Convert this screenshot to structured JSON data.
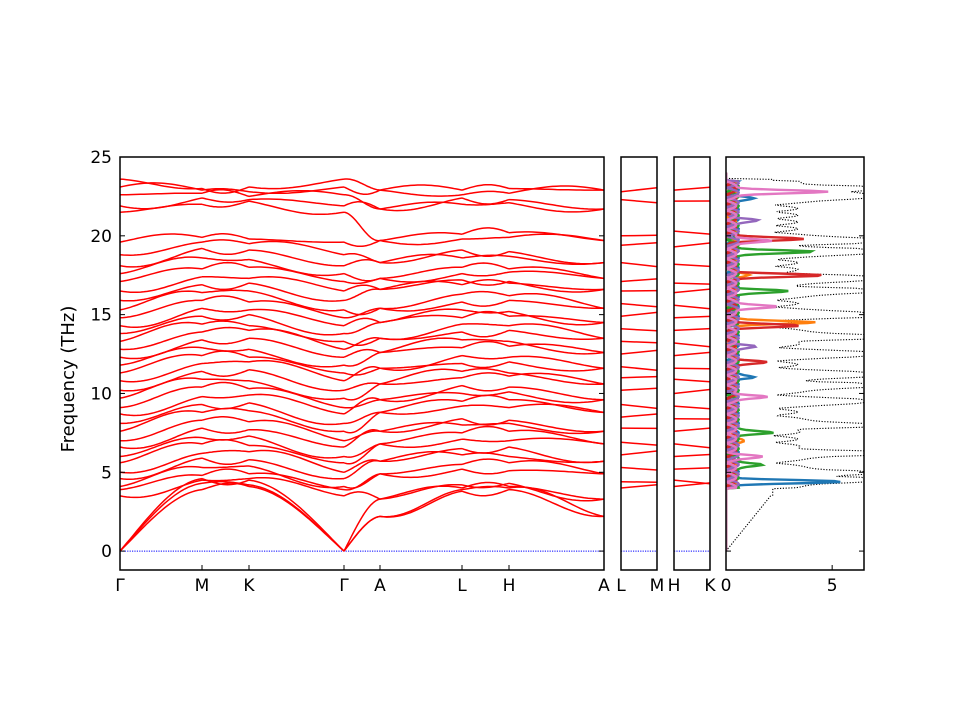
{
  "chart_data": [
    {
      "type": "line",
      "panel": "band-structure-main",
      "ylabel": "Frequency (THz)",
      "ylim": [
        -1.2,
        25
      ],
      "y_ticks": [
        0,
        5,
        10,
        15,
        20,
        25
      ],
      "x_labels": [
        "Γ",
        "M",
        "K",
        "Γ",
        "A",
        "L",
        "H",
        "A"
      ],
      "series_color": "#ff0000",
      "zero_line_color": "#0000ff",
      "segments": [
        {
          "from": "Γ",
          "to": "M",
          "bands_start": [
            0,
            0,
            0,
            3.5,
            3.9,
            4.1,
            4.6,
            5.0,
            5.6,
            6.0,
            6.6,
            7.0,
            7.6,
            8.1,
            8.7,
            9.1,
            9.7,
            10.2,
            10.8,
            11.3,
            11.8,
            12.3,
            12.8,
            13.3,
            13.8,
            14.3,
            14.8,
            15.3,
            15.9,
            16.5,
            17.1,
            17.6,
            18.1,
            18.8,
            19.6,
            21.5,
            21.9,
            22.6,
            23.1,
            23.6
          ],
          "bands_end": [
            3.9,
            4.3,
            4.6,
            4.5,
            4.8,
            5.3,
            5.9,
            6.2,
            6.8,
            7.2,
            7.8,
            8.3,
            8.8,
            9.3,
            9.8,
            10.4,
            10.9,
            11.4,
            11.9,
            12.4,
            12.9,
            13.4,
            13.9,
            14.4,
            14.9,
            15.4,
            15.9,
            16.4,
            16.9,
            17.4,
            17.9,
            18.6,
            19.2,
            19.6,
            19.9,
            22.0,
            22.4,
            22.7,
            22.9,
            23.0
          ]
        },
        {
          "from": "M",
          "to": "K",
          "bands_start": [
            3.9,
            4.3,
            4.6,
            4.5,
            4.8,
            5.3,
            5.9,
            6.2,
            6.8,
            7.2,
            7.8,
            8.3,
            8.8,
            9.3,
            9.8,
            10.4,
            10.9,
            11.4,
            11.9,
            12.4,
            12.9,
            13.4,
            13.9,
            14.4,
            14.9,
            15.4,
            15.9,
            16.4,
            16.9,
            17.4,
            17.9,
            18.6,
            19.2,
            19.6,
            19.9,
            22.0,
            22.4,
            22.7,
            22.9,
            23.0
          ],
          "bands_end": [
            4.1,
            4.2,
            4.5,
            4.6,
            4.9,
            5.4,
            5.8,
            6.3,
            6.7,
            7.3,
            7.7,
            8.2,
            8.9,
            9.4,
            9.9,
            10.3,
            10.8,
            11.5,
            12.0,
            12.3,
            12.8,
            13.5,
            14.0,
            14.3,
            15.0,
            15.3,
            15.8,
            16.5,
            17.0,
            17.3,
            18.0,
            18.5,
            19.1,
            19.5,
            19.8,
            22.2,
            22.3,
            22.5,
            22.8,
            23.1
          ]
        },
        {
          "from": "K",
          "to": "Γ",
          "bands_start": [
            4.1,
            4.2,
            4.5,
            4.6,
            4.9,
            5.4,
            5.8,
            6.3,
            6.7,
            7.3,
            7.7,
            8.2,
            8.9,
            9.4,
            9.9,
            10.3,
            10.8,
            11.5,
            12.0,
            12.3,
            12.8,
            13.5,
            14.0,
            14.3,
            15.0,
            15.3,
            15.8,
            16.5,
            17.0,
            17.3,
            18.0,
            18.5,
            19.1,
            19.5,
            19.8,
            22.2,
            22.3,
            22.5,
            22.8,
            23.1
          ],
          "bands_end": [
            0,
            0,
            0,
            3.5,
            3.9,
            4.1,
            4.6,
            5.0,
            5.6,
            6.0,
            6.6,
            7.0,
            7.6,
            8.1,
            8.7,
            9.1,
            9.7,
            10.2,
            10.8,
            11.3,
            11.8,
            12.3,
            12.8,
            13.3,
            13.8,
            14.3,
            14.8,
            15.3,
            15.9,
            16.5,
            17.1,
            17.6,
            18.1,
            18.8,
            19.6,
            21.5,
            21.9,
            22.6,
            23.1,
            23.6
          ]
        },
        {
          "from": "Γ",
          "to": "A",
          "bands_start": [
            0,
            0,
            0,
            3.5,
            3.9,
            4.1,
            4.6,
            5.0,
            5.6,
            6.0,
            6.6,
            7.0,
            7.6,
            8.1,
            8.7,
            9.1,
            9.7,
            10.2,
            10.8,
            11.3,
            11.8,
            12.3,
            12.8,
            13.3,
            13.8,
            14.3,
            14.8,
            15.3,
            15.9,
            16.5,
            17.1,
            17.6,
            18.1,
            18.8,
            19.6,
            21.5,
            21.9,
            22.6,
            23.1,
            23.6
          ],
          "bands_end": [
            2.2,
            2.2,
            3.3,
            3.3,
            4.9,
            4.9,
            5.7,
            5.7,
            6.8,
            6.8,
            7.6,
            7.6,
            8.8,
            8.8,
            9.6,
            9.6,
            10.6,
            10.6,
            11.6,
            11.6,
            12.6,
            12.6,
            13.5,
            13.5,
            14.5,
            14.5,
            15.4,
            15.4,
            16.6,
            16.6,
            17.3,
            17.3,
            18.3,
            18.3,
            19.7,
            19.7,
            21.7,
            21.7,
            22.9,
            22.9
          ]
        },
        {
          "from": "A",
          "to": "L",
          "bands_start": [
            2.2,
            2.2,
            3.3,
            3.3,
            4.9,
            4.9,
            5.7,
            5.7,
            6.8,
            6.8,
            7.6,
            7.6,
            8.8,
            8.8,
            9.6,
            9.6,
            10.6,
            10.6,
            11.6,
            11.6,
            12.6,
            12.6,
            13.5,
            13.5,
            14.5,
            14.5,
            15.4,
            15.4,
            16.6,
            16.6,
            17.3,
            17.3,
            18.3,
            18.3,
            19.7,
            19.7,
            21.7,
            21.7,
            22.9,
            22.9
          ],
          "bands_end": [
            3.8,
            3.9,
            4.0,
            4.2,
            5.2,
            5.5,
            6.1,
            6.5,
            7.1,
            7.5,
            8.0,
            8.4,
            9.2,
            9.5,
            10.0,
            10.5,
            11.0,
            11.4,
            11.9,
            12.4,
            12.9,
            13.4,
            13.9,
            14.4,
            14.8,
            15.3,
            15.8,
            16.3,
            16.9,
            17.2,
            17.6,
            18.0,
            18.6,
            19.1,
            19.8,
            20.1,
            22.0,
            22.4,
            22.6,
            22.9
          ]
        },
        {
          "from": "L",
          "to": "H",
          "bands_start": [
            3.8,
            3.9,
            4.0,
            4.2,
            5.2,
            5.5,
            6.1,
            6.5,
            7.1,
            7.5,
            8.0,
            8.4,
            9.2,
            9.5,
            10.0,
            10.5,
            11.0,
            11.4,
            11.9,
            12.4,
            12.9,
            13.4,
            13.9,
            14.4,
            14.8,
            15.3,
            15.8,
            16.3,
            16.9,
            17.2,
            17.6,
            18.0,
            18.6,
            19.1,
            19.8,
            20.1,
            22.0,
            22.4,
            22.6,
            22.9
          ],
          "bands_end": [
            3.9,
            4.0,
            4.1,
            4.3,
            5.1,
            5.6,
            6.0,
            6.6,
            7.0,
            7.6,
            8.1,
            8.3,
            9.1,
            9.6,
            10.1,
            10.4,
            11.1,
            11.3,
            12.0,
            12.3,
            13.0,
            13.3,
            14.0,
            14.3,
            14.9,
            15.2,
            15.9,
            16.2,
            17.0,
            17.1,
            17.7,
            17.9,
            18.7,
            19.0,
            19.9,
            20.2,
            22.1,
            22.3,
            22.7,
            23.0
          ]
        },
        {
          "from": "H",
          "to": "A",
          "bands_start": [
            3.9,
            4.0,
            4.1,
            4.3,
            5.1,
            5.6,
            6.0,
            6.6,
            7.0,
            7.6,
            8.1,
            8.3,
            9.1,
            9.6,
            10.1,
            10.4,
            11.1,
            11.3,
            12.0,
            12.3,
            13.0,
            13.3,
            14.0,
            14.3,
            14.9,
            15.2,
            15.9,
            16.2,
            17.0,
            17.1,
            17.7,
            17.9,
            18.7,
            19.0,
            19.9,
            20.2,
            22.1,
            22.3,
            22.7,
            23.0
          ],
          "bands_end": [
            2.2,
            2.2,
            3.3,
            3.3,
            4.9,
            4.9,
            5.7,
            5.7,
            6.8,
            6.8,
            7.6,
            7.6,
            8.8,
            8.8,
            9.6,
            9.6,
            10.6,
            10.6,
            11.6,
            11.6,
            12.6,
            12.6,
            13.5,
            13.5,
            14.5,
            14.5,
            15.4,
            15.4,
            16.6,
            16.6,
            17.3,
            17.3,
            18.3,
            18.3,
            19.7,
            19.7,
            21.7,
            21.7,
            22.9,
            22.9
          ]
        }
      ]
    },
    {
      "type": "line",
      "panel": "band-structure-L-M",
      "ylim": [
        -1.2,
        25
      ],
      "x_labels": [
        "L",
        "M"
      ],
      "series_color": "#ff0000",
      "bands": [
        4.0,
        4.4,
        5.3,
        6.1,
        6.9,
        7.8,
        8.5,
        9.3,
        10.2,
        11.0,
        11.7,
        12.5,
        13.3,
        14.1,
        14.9,
        15.7,
        16.5,
        17.1,
        18.3,
        19.4,
        20.0,
        22.3,
        22.8
      ]
    },
    {
      "type": "line",
      "panel": "band-structure-H-K",
      "ylim": [
        -1.2,
        25
      ],
      "x_labels": [
        "H",
        "K"
      ],
      "series_color": "#ff0000",
      "bands": [
        4.1,
        4.5,
        5.2,
        6.0,
        6.8,
        7.6,
        8.4,
        9.2,
        10.0,
        10.9,
        11.6,
        12.4,
        13.2,
        14.0,
        14.8,
        15.6,
        16.4,
        17.0,
        18.2,
        19.3,
        20.3,
        22.2,
        22.9
      ]
    },
    {
      "type": "line",
      "panel": "dos",
      "xlim": [
        0,
        6.5
      ],
      "ylim": [
        -1.2,
        25
      ],
      "x_ticks": [
        0,
        5
      ],
      "series": [
        {
          "color": "#000000",
          "style": "dotted",
          "peaks": [
            [
              4.5,
              6.3
            ],
            [
              5.0,
              4.2
            ],
            [
              6.2,
              6.0
            ],
            [
              8.0,
              5.3
            ],
            [
              9.5,
              4.7
            ],
            [
              10.5,
              6.4
            ],
            [
              11.2,
              5.9
            ],
            [
              12.5,
              5.6
            ],
            [
              13.6,
              6.2
            ],
            [
              15.0,
              6.1
            ],
            [
              16.5,
              6.0
            ],
            [
              17.3,
              6.4
            ],
            [
              19.0,
              6.5
            ],
            [
              19.7,
              6.4
            ],
            [
              22.5,
              6.3
            ],
            [
              23.0,
              6.0
            ]
          ]
        },
        {
          "color": "#1f77b4",
          "style": "solid",
          "peaks": [
            [
              4.4,
              4.9
            ],
            [
              11.0,
              1.0
            ],
            [
              22.4,
              0.8
            ]
          ]
        },
        {
          "color": "#ff7f0e",
          "style": "solid",
          "peaks": [
            [
              14.5,
              4.0
            ],
            [
              7.0,
              0.8
            ],
            [
              17.5,
              1.0
            ]
          ]
        },
        {
          "color": "#2ca02c",
          "style": "solid",
          "peaks": [
            [
              19.0,
              3.8
            ],
            [
              16.5,
              2.5
            ],
            [
              7.5,
              2.0
            ],
            [
              5.5,
              1.5
            ]
          ]
        },
        {
          "color": "#d62728",
          "style": "solid",
          "peaks": [
            [
              17.5,
              4.2
            ],
            [
              19.8,
              3.2
            ],
            [
              14.3,
              3.0
            ],
            [
              12.0,
              1.6
            ]
          ]
        },
        {
          "color": "#9467bd",
          "style": "solid",
          "peaks": [
            [
              21.0,
              1.0
            ],
            [
              13.0,
              0.9
            ]
          ]
        },
        {
          "color": "#e377c2",
          "style": "solid",
          "peaks": [
            [
              22.8,
              4.7
            ],
            [
              19.7,
              2.0
            ],
            [
              15.5,
              2.3
            ],
            [
              9.8,
              1.7
            ],
            [
              6.0,
              1.3
            ]
          ]
        }
      ]
    }
  ]
}
